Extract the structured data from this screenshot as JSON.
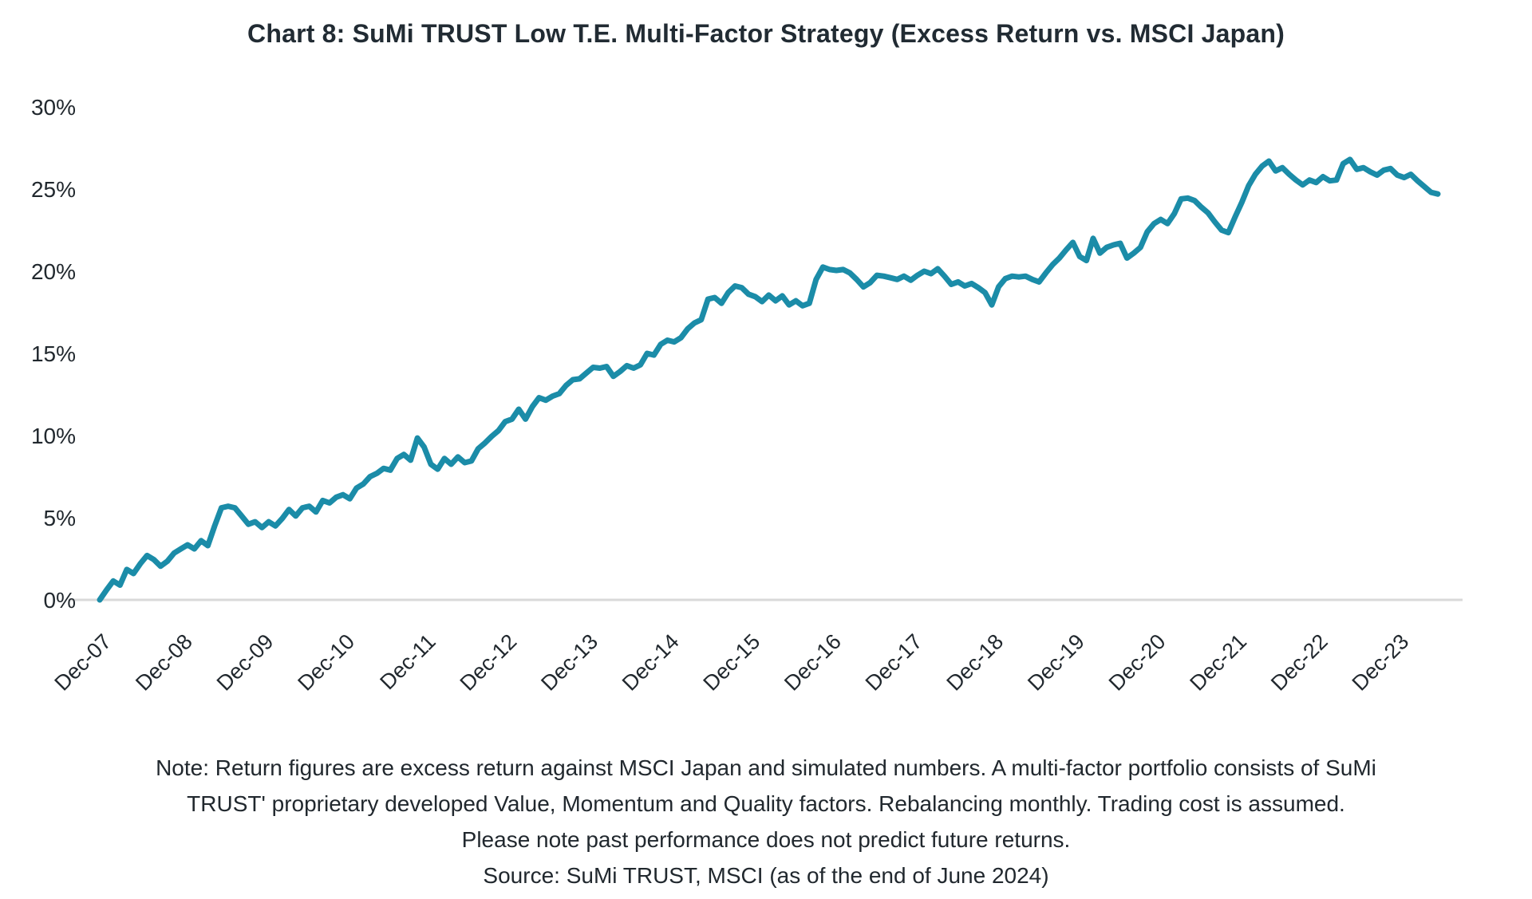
{
  "title": "Chart 8: SuMi TRUST Low T.E. Multi-Factor Strategy (Excess Return vs. MSCI Japan)",
  "colors": {
    "line": "#1B8CA8",
    "axis_line": "#D9D9D9",
    "text": "#21282E"
  },
  "chart_data": {
    "type": "line",
    "title": "Chart 8: SuMi TRUST Low T.E. Multi-Factor Strategy (Excess Return vs. MSCI Japan)",
    "xlabel": "",
    "ylabel": "",
    "ylim": [
      0,
      30
    ],
    "y_tick_labels": [
      "0%",
      "5%",
      "10%",
      "15%",
      "20%",
      "25%",
      "30%"
    ],
    "y_tick_values": [
      0,
      5,
      10,
      15,
      20,
      25,
      30
    ],
    "x_tick_labels": [
      "Dec-07",
      "Dec-08",
      "Dec-09",
      "Dec-10",
      "Dec-11",
      "Dec-12",
      "Dec-13",
      "Dec-14",
      "Dec-15",
      "Dec-16",
      "Dec-17",
      "Dec-18",
      "Dec-19",
      "Dec-20",
      "Dec-21",
      "Dec-22",
      "Dec-23"
    ],
    "grid": false,
    "legend": "none",
    "series": [
      {
        "name": "Cumulative excess return vs. MSCI Japan",
        "frequency": "monthly",
        "start": "Dec-07",
        "end": "Jun-24",
        "unit": "%",
        "values": [
          0.0,
          0.6,
          1.15,
          0.9,
          1.85,
          1.6,
          2.2,
          2.7,
          2.45,
          2.05,
          2.35,
          2.85,
          3.1,
          3.35,
          3.1,
          3.6,
          3.3,
          4.5,
          5.6,
          5.7,
          5.6,
          5.1,
          4.6,
          4.75,
          4.4,
          4.75,
          4.5,
          4.95,
          5.5,
          5.1,
          5.6,
          5.7,
          5.35,
          6.05,
          5.9,
          6.25,
          6.4,
          6.15,
          6.8,
          7.05,
          7.5,
          7.7,
          8.0,
          7.9,
          8.6,
          8.85,
          8.5,
          9.85,
          9.3,
          8.25,
          7.95,
          8.6,
          8.25,
          8.7,
          8.35,
          8.45,
          9.2,
          9.55,
          9.95,
          10.3,
          10.85,
          11.0,
          11.6,
          11.0,
          11.75,
          12.3,
          12.15,
          12.4,
          12.55,
          13.05,
          13.4,
          13.45,
          13.8,
          14.15,
          14.1,
          14.2,
          13.6,
          13.9,
          14.25,
          14.1,
          14.3,
          15.0,
          14.9,
          15.55,
          15.8,
          15.7,
          15.95,
          16.5,
          16.85,
          17.05,
          18.3,
          18.4,
          18.05,
          18.7,
          19.1,
          19.0,
          18.6,
          18.45,
          18.15,
          18.55,
          18.2,
          18.5,
          17.95,
          18.2,
          17.9,
          18.05,
          19.5,
          20.25,
          20.1,
          20.05,
          20.1,
          19.9,
          19.5,
          19.05,
          19.3,
          19.75,
          19.7,
          19.6,
          19.5,
          19.7,
          19.45,
          19.75,
          20.0,
          19.85,
          20.15,
          19.7,
          19.2,
          19.35,
          19.1,
          19.25,
          19.0,
          18.7,
          17.95,
          19.05,
          19.55,
          19.7,
          19.65,
          19.7,
          19.5,
          19.35,
          19.9,
          20.4,
          20.8,
          21.3,
          21.75,
          20.9,
          20.65,
          22.0,
          21.1,
          21.45,
          21.6,
          21.7,
          20.8,
          21.1,
          21.45,
          22.4,
          22.9,
          23.15,
          22.9,
          23.5,
          24.4,
          24.45,
          24.3,
          23.9,
          23.55,
          23.0,
          22.5,
          22.35,
          23.3,
          24.2,
          25.2,
          25.9,
          26.4,
          26.7,
          26.1,
          26.3,
          25.9,
          25.55,
          25.25,
          25.55,
          25.4,
          25.75,
          25.5,
          25.55,
          26.55,
          26.8,
          26.2,
          26.3,
          26.05,
          25.85,
          26.15,
          26.25,
          25.85,
          25.7,
          25.9,
          25.5,
          25.15,
          24.8,
          24.7
        ]
      }
    ]
  },
  "notes": {
    "lines": [
      "Note: Return figures are excess return against MSCI Japan and simulated numbers. A multi-factor portfolio consists of SuMi",
      "TRUST' proprietary developed Value, Momentum and Quality factors. Rebalancing monthly. Trading cost is assumed.",
      "Please note past performance does not predict future returns.",
      "Source: SuMi TRUST, MSCI (as of the end of June 2024)"
    ]
  }
}
